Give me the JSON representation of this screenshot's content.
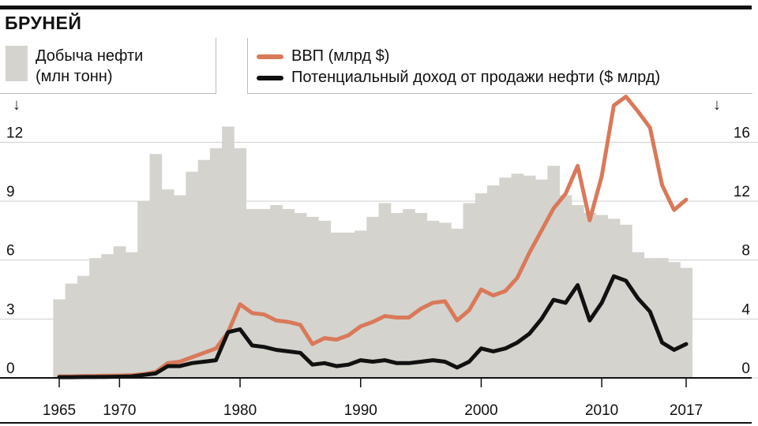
{
  "title": "БРУНЕЙ",
  "legend": {
    "bars_label_line1": "Добыча нефти",
    "bars_label_line2": "(млн тонн)",
    "gdp_label": "ВВП (млрд $)",
    "revenue_label": "Потенциальный доход от продажи нефти ($ млрд)",
    "arrow_left": "↓",
    "arrow_right": "↓"
  },
  "colors": {
    "bars": "#d4d3ce",
    "gdp": "#d9795a",
    "revenue": "#111111"
  },
  "chart_data": {
    "type": "bar",
    "x_ticks": [
      "1965",
      "1970",
      "1980",
      "1990",
      "2000",
      "2010",
      "2017"
    ],
    "left_axis": {
      "ticks": [
        "0",
        "3",
        "6",
        "9",
        "12"
      ],
      "ylim": [
        0,
        13.5
      ]
    },
    "right_axis": {
      "ticks": [
        "0",
        "4",
        "8",
        "12",
        "16"
      ],
      "ylim": [
        0,
        18
      ]
    },
    "years": [
      1965,
      1966,
      1967,
      1968,
      1969,
      1970,
      1971,
      1972,
      1973,
      1974,
      1975,
      1976,
      1977,
      1978,
      1979,
      1980,
      1981,
      1982,
      1983,
      1984,
      1985,
      1986,
      1987,
      1988,
      1989,
      1990,
      1991,
      1992,
      1993,
      1994,
      1995,
      1996,
      1997,
      1998,
      1999,
      2000,
      2001,
      2002,
      2003,
      2004,
      2005,
      2006,
      2007,
      2008,
      2009,
      2010,
      2011,
      2012,
      2013,
      2014,
      2015,
      2016,
      2017
    ],
    "series": [
      {
        "name": "Добыча нефти (млн тонн)",
        "axis": "left",
        "type": "bar",
        "values": [
          4.0,
          4.8,
          5.2,
          6.1,
          6.3,
          6.7,
          6.4,
          9.0,
          11.4,
          9.6,
          9.3,
          10.5,
          11.1,
          11.7,
          12.8,
          11.7,
          8.6,
          8.6,
          8.8,
          8.6,
          8.4,
          8.2,
          8.0,
          7.4,
          7.4,
          7.5,
          8.2,
          8.9,
          8.4,
          8.6,
          8.4,
          8.0,
          7.9,
          7.6,
          8.9,
          9.4,
          9.8,
          10.2,
          10.4,
          10.3,
          10.1,
          10.8,
          9.3,
          8.8,
          8.4,
          8.3,
          8.1,
          7.8,
          6.4,
          6.1,
          6.1,
          5.9,
          5.6
        ]
      },
      {
        "name": "ВВП (млрд $)",
        "axis": "right",
        "type": "line",
        "values": [
          0.1,
          0.1,
          0.12,
          0.13,
          0.15,
          0.16,
          0.18,
          0.25,
          0.4,
          1.0,
          1.1,
          1.4,
          1.7,
          2.0,
          3.1,
          5.0,
          4.4,
          4.3,
          3.9,
          3.8,
          3.6,
          2.3,
          2.7,
          2.6,
          2.9,
          3.5,
          3.8,
          4.2,
          4.1,
          4.1,
          4.7,
          5.1,
          5.2,
          3.9,
          4.6,
          6.0,
          5.6,
          5.9,
          6.8,
          8.5,
          10.0,
          11.5,
          12.5,
          14.4,
          10.7,
          13.7,
          18.5,
          19.1,
          18.1,
          17.0,
          13.1,
          11.4,
          12.1
        ]
      },
      {
        "name": "Потенциальный доход от продажи нефти ($ млрд)",
        "axis": "right",
        "type": "line",
        "values": [
          0.05,
          0.05,
          0.06,
          0.06,
          0.07,
          0.08,
          0.1,
          0.2,
          0.3,
          0.8,
          0.8,
          1.0,
          1.1,
          1.2,
          3.1,
          3.3,
          2.2,
          2.1,
          1.9,
          1.8,
          1.7,
          0.9,
          1.0,
          0.8,
          0.9,
          1.2,
          1.1,
          1.2,
          1.0,
          1.0,
          1.1,
          1.2,
          1.1,
          0.7,
          1.1,
          2.0,
          1.8,
          2.0,
          2.4,
          3.0,
          4.0,
          5.3,
          5.1,
          6.3,
          3.9,
          5.1,
          6.9,
          6.6,
          5.4,
          4.5,
          2.4,
          1.9,
          2.3
        ]
      }
    ]
  }
}
